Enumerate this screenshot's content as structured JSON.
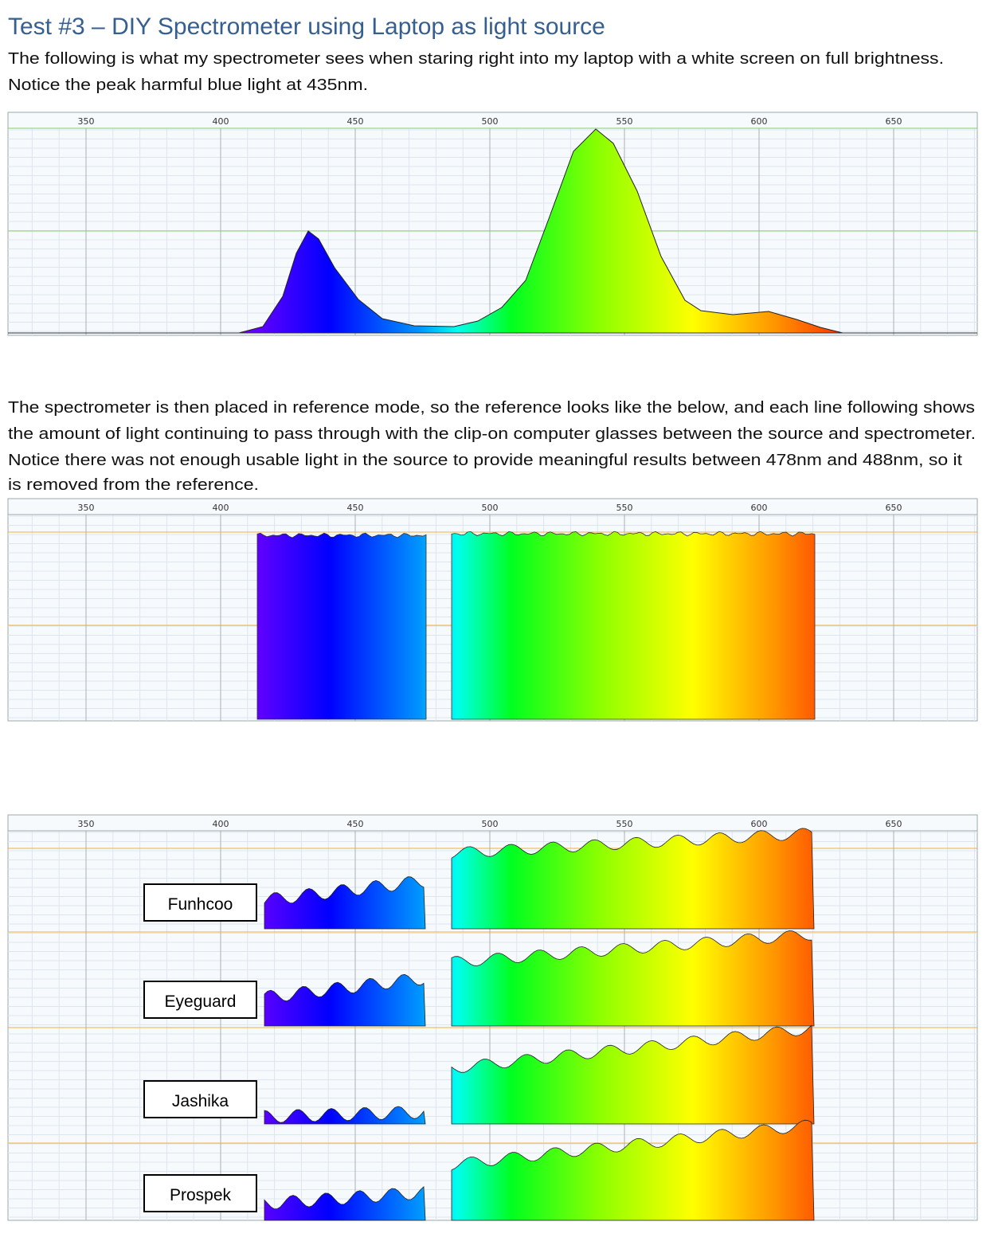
{
  "title": "Test #3 – DIY Spectrometer using Laptop as light source",
  "paragraph_1": [
    "The following is what my spectrometer sees when staring right into my laptop with a white screen on full brightness.",
    "Notice the peak harmful blue light at 435nm."
  ],
  "paragraph_2": [
    "The spectrometer is then placed in reference mode, so the reference looks like the below, and each line following shows",
    "the amount of light continuing to pass through with the clip-on computer glasses between the source and spectrometer.",
    "Notice there was not enough usable light in the source to provide meaningful results between 478nm and 488nm, so it",
    "is removed from the reference."
  ],
  "axis_ticks": [
    350,
    400,
    450,
    500,
    550,
    600,
    650
  ],
  "glasses": [
    "Funhcoo",
    "Eyeguard",
    "Jashika",
    "Prospek"
  ]
}
